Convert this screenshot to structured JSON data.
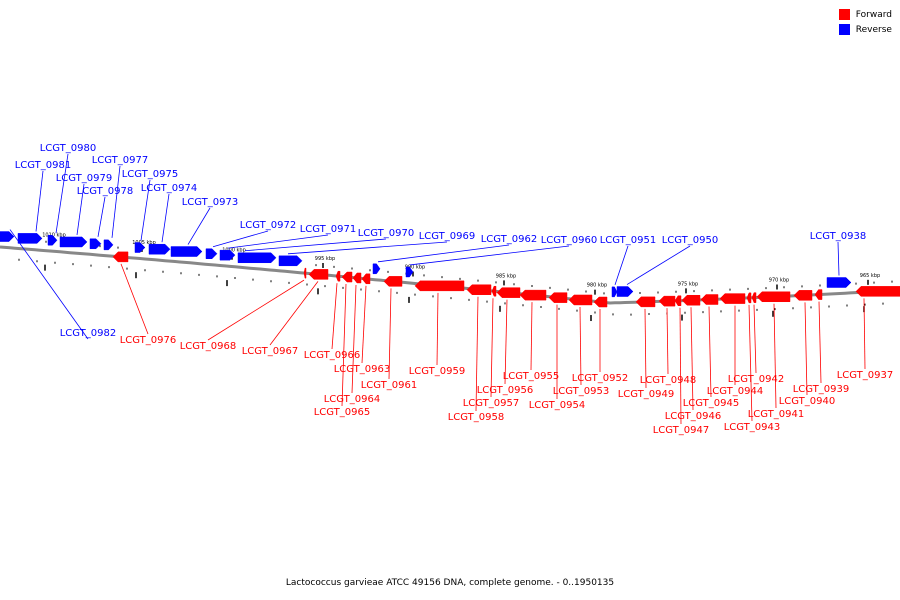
{
  "legend": [
    {
      "label": "Forward",
      "color": "#ff0000"
    },
    {
      "label": "Reverse",
      "color": "#0000ff"
    }
  ],
  "caption": "Lactococcus garvieae ATCC 49156 DNA, complete genome. - 0..1950135",
  "colors": {
    "forward": "#ff0000",
    "reverse": "#0000ff",
    "backbone": "#888888"
  },
  "ruler_labels": [
    "1010 kbp",
    "1005 kbp",
    "1000 kbp",
    "995 kbp",
    "990 kbp",
    "985 kbp",
    "980 kbp",
    "975 kbp",
    "970 kbp",
    "965 kbp"
  ],
  "genes": [
    {
      "name": "LCGT_0982",
      "strand": "reverse"
    },
    {
      "name": "LCGT_0981",
      "strand": "reverse"
    },
    {
      "name": "LCGT_0980",
      "strand": "reverse"
    },
    {
      "name": "LCGT_0979",
      "strand": "reverse"
    },
    {
      "name": "LCGT_0978",
      "strand": "reverse"
    },
    {
      "name": "LCGT_0977",
      "strand": "reverse"
    },
    {
      "name": "LCGT_0976",
      "strand": "forward"
    },
    {
      "name": "LCGT_0975",
      "strand": "reverse"
    },
    {
      "name": "LCGT_0974",
      "strand": "reverse"
    },
    {
      "name": "LCGT_0973",
      "strand": "reverse"
    },
    {
      "name": "LCGT_0972",
      "strand": "reverse"
    },
    {
      "name": "LCGT_0971",
      "strand": "reverse"
    },
    {
      "name": "LCGT_0970",
      "strand": "reverse"
    },
    {
      "name": "LCGT_0969",
      "strand": "reverse"
    },
    {
      "name": "LCGT_0968",
      "strand": "forward"
    },
    {
      "name": "LCGT_0967",
      "strand": "forward"
    },
    {
      "name": "LCGT_0966",
      "strand": "forward"
    },
    {
      "name": "LCGT_0965",
      "strand": "forward"
    },
    {
      "name": "LCGT_0964",
      "strand": "forward"
    },
    {
      "name": "LCGT_0963",
      "strand": "forward"
    },
    {
      "name": "LCGT_0962",
      "strand": "reverse"
    },
    {
      "name": "LCGT_0961",
      "strand": "forward"
    },
    {
      "name": "LCGT_0960",
      "strand": "reverse"
    },
    {
      "name": "LCGT_0959",
      "strand": "forward"
    },
    {
      "name": "LCGT_0958",
      "strand": "forward"
    },
    {
      "name": "LCGT_0957",
      "strand": "forward"
    },
    {
      "name": "LCGT_0956",
      "strand": "forward"
    },
    {
      "name": "LCGT_0955",
      "strand": "forward"
    },
    {
      "name": "LCGT_0954",
      "strand": "forward"
    },
    {
      "name": "LCGT_0953",
      "strand": "forward"
    },
    {
      "name": "LCGT_0952",
      "strand": "forward"
    },
    {
      "name": "LCGT_0951",
      "strand": "reverse"
    },
    {
      "name": "LCGT_0950",
      "strand": "reverse"
    },
    {
      "name": "LCGT_0949",
      "strand": "forward"
    },
    {
      "name": "LCGT_0948",
      "strand": "forward"
    },
    {
      "name": "LCGT_0947",
      "strand": "forward"
    },
    {
      "name": "LCGT_0946",
      "strand": "forward"
    },
    {
      "name": "LCGT_0945",
      "strand": "forward"
    },
    {
      "name": "LCGT_0944",
      "strand": "forward"
    },
    {
      "name": "LCGT_0943",
      "strand": "forward"
    },
    {
      "name": "LCGT_0942",
      "strand": "forward"
    },
    {
      "name": "LCGT_0941",
      "strand": "forward"
    },
    {
      "name": "LCGT_0940",
      "strand": "forward"
    },
    {
      "name": "LCGT_0939",
      "strand": "forward"
    },
    {
      "name": "LCGT_0938",
      "strand": "reverse"
    },
    {
      "name": "LCGT_0937",
      "strand": "forward"
    }
  ]
}
